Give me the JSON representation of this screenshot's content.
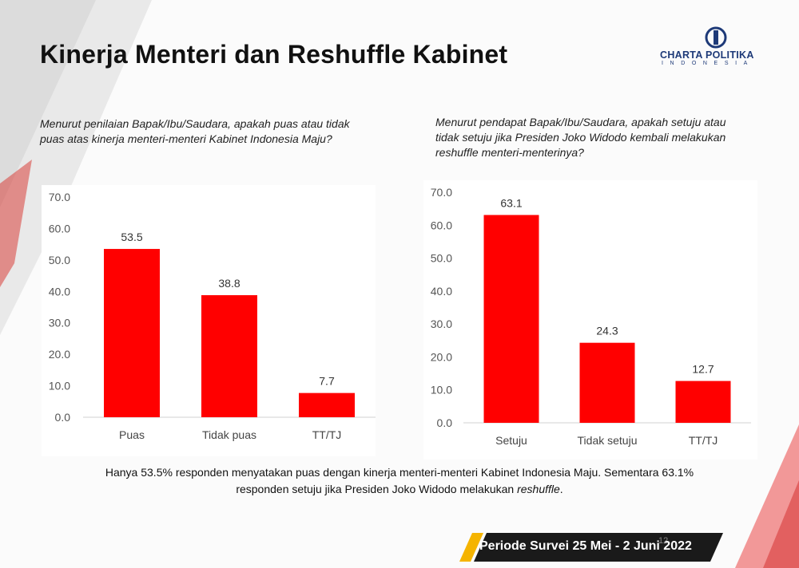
{
  "title": "Kinerja Menteri dan Reshuffle Kabinet",
  "logo": {
    "main": "CHARTA POLITIKA",
    "sub": "INDONESIA"
  },
  "colors": {
    "bar": "#ff0000",
    "accent": "#d81e1e",
    "footer_bg": "#1a1a1a",
    "footer_stripe": "#f5b400"
  },
  "left_question": "Menurut penilaian Bapak/Ibu/Saudara, apakah puas atau tidak puas atas kinerja menteri-menteri Kabinet Indonesia Maju?",
  "right_question": "Menurut pendapat Bapak/Ibu/Saudara, apakah setuju atau tidak setuju jika Presiden Joko Widodo kembali melakukan reshuffle menteri-menterinya?",
  "summary": {
    "line1": "Hanya 53.5% responden menyatakan puas dengan kinerja menteri-menteri Kabinet Indonesia Maju. Sementara 63.1%",
    "line2_prefix": "responden setuju jika Presiden Joko Widodo melakukan ",
    "line2_italic": "reshuffle",
    "line2_suffix": "."
  },
  "footer": {
    "period": "Periode Survei 25 Mei - 2 Juni 2022",
    "page": "12"
  },
  "chart_data": [
    {
      "type": "bar",
      "categories": [
        "Puas",
        "Tidak puas",
        "TT/TJ"
      ],
      "values": [
        53.5,
        38.8,
        7.7
      ],
      "value_labels": [
        "53.5",
        "38.8",
        "7.7"
      ],
      "yticks": [
        "0.0",
        "10.0",
        "20.0",
        "30.0",
        "40.0",
        "50.0",
        "60.0",
        "70.0"
      ],
      "ylim": [
        0,
        70
      ],
      "grid": false,
      "legend": "none"
    },
    {
      "type": "bar",
      "categories": [
        "Setuju",
        "Tidak setuju",
        "TT/TJ"
      ],
      "values": [
        63.1,
        24.3,
        12.7
      ],
      "value_labels": [
        "63.1",
        "24.3",
        "12.7"
      ],
      "yticks": [
        "0.0",
        "10.0",
        "20.0",
        "30.0",
        "40.0",
        "50.0",
        "60.0",
        "70.0"
      ],
      "ylim": [
        0,
        70
      ],
      "grid": false,
      "legend": "none"
    }
  ]
}
